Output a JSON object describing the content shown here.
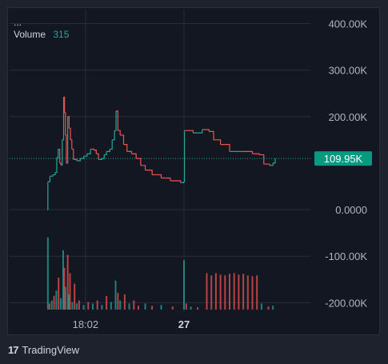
{
  "legend": {
    "title": "...",
    "volume_label": "Volume",
    "volume_value": "315"
  },
  "brand": {
    "name": "TradingView"
  },
  "colors": {
    "up": "#26a69a",
    "down": "#ef5350",
    "background": "#131722",
    "grid": "#2a2e39",
    "last_price_bg": "#089981"
  },
  "chart_data": {
    "type": "line",
    "y_ticks": [
      "400.00K",
      "300.00K",
      "200.00K",
      "0.0000",
      "-100.00K",
      "-200.00K"
    ],
    "y_tick_values": [
      400000,
      300000,
      200000,
      0,
      -100000,
      -200000
    ],
    "ylim": [
      -220000,
      430000
    ],
    "x_ticks": [
      {
        "label": "18:02",
        "bold": false,
        "t": 0.168
      },
      {
        "label": "27",
        "bold": true,
        "t": 0.6
      }
    ],
    "last_price": {
      "label": "109.95K",
      "value": 109950
    },
    "price_series": [
      [
        0.0,
        0
      ],
      [
        0.003,
        60000
      ],
      [
        0.012,
        72000
      ],
      [
        0.025,
        75000
      ],
      [
        0.035,
        80000
      ],
      [
        0.042,
        112000
      ],
      [
        0.048,
        130000
      ],
      [
        0.055,
        100000
      ],
      [
        0.06,
        96000
      ],
      [
        0.066,
        150000
      ],
      [
        0.072,
        242000
      ],
      [
        0.076,
        208000
      ],
      [
        0.08,
        160000
      ],
      [
        0.084,
        100000
      ],
      [
        0.09,
        200000
      ],
      [
        0.096,
        175000
      ],
      [
        0.102,
        150000
      ],
      [
        0.108,
        130000
      ],
      [
        0.115,
        108000
      ],
      [
        0.13,
        105000
      ],
      [
        0.145,
        110000
      ],
      [
        0.16,
        115000
      ],
      [
        0.175,
        120000
      ],
      [
        0.19,
        130000
      ],
      [
        0.205,
        128000
      ],
      [
        0.215,
        120000
      ],
      [
        0.225,
        108000
      ],
      [
        0.24,
        110000
      ],
      [
        0.25,
        118000
      ],
      [
        0.26,
        125000
      ],
      [
        0.275,
        130000
      ],
      [
        0.285,
        150000
      ],
      [
        0.295,
        170000
      ],
      [
        0.302,
        212000
      ],
      [
        0.31,
        170000
      ],
      [
        0.32,
        160000
      ],
      [
        0.335,
        140000
      ],
      [
        0.35,
        125000
      ],
      [
        0.37,
        120000
      ],
      [
        0.39,
        110000
      ],
      [
        0.41,
        95000
      ],
      [
        0.43,
        85000
      ],
      [
        0.46,
        75000
      ],
      [
        0.5,
        68000
      ],
      [
        0.54,
        62000
      ],
      [
        0.585,
        58000
      ],
      [
        0.598,
        60000
      ],
      [
        0.602,
        170000
      ],
      [
        0.64,
        165000
      ],
      [
        0.68,
        172000
      ],
      [
        0.71,
        168000
      ],
      [
        0.73,
        150000
      ],
      [
        0.76,
        140000
      ],
      [
        0.8,
        125000
      ],
      [
        0.85,
        125000
      ],
      [
        0.9,
        120000
      ],
      [
        0.93,
        118000
      ],
      [
        0.95,
        98000
      ],
      [
        0.975,
        95000
      ],
      [
        0.99,
        100000
      ],
      [
        1.0,
        109950
      ]
    ],
    "volume_bars_note": "",
    "volume_series": [
      [
        0.003,
        0.95,
        "up"
      ],
      [
        0.01,
        0.08,
        "down"
      ],
      [
        0.02,
        0.12,
        "up"
      ],
      [
        0.03,
        0.18,
        "down"
      ],
      [
        0.04,
        0.25,
        "up"
      ],
      [
        0.05,
        0.42,
        "down"
      ],
      [
        0.06,
        0.15,
        "up"
      ],
      [
        0.07,
        0.78,
        "up"
      ],
      [
        0.075,
        0.55,
        "down"
      ],
      [
        0.08,
        0.3,
        "up"
      ],
      [
        0.09,
        0.72,
        "down"
      ],
      [
        0.095,
        0.2,
        "up"
      ],
      [
        0.1,
        0.48,
        "down"
      ],
      [
        0.11,
        0.1,
        "up"
      ],
      [
        0.12,
        0.34,
        "down"
      ],
      [
        0.13,
        0.08,
        "up"
      ],
      [
        0.14,
        0.12,
        "down"
      ],
      [
        0.16,
        0.06,
        "up"
      ],
      [
        0.18,
        0.1,
        "down"
      ],
      [
        0.2,
        0.08,
        "up"
      ],
      [
        0.22,
        0.12,
        "down"
      ],
      [
        0.24,
        0.06,
        "up"
      ],
      [
        0.26,
        0.18,
        "down"
      ],
      [
        0.28,
        0.1,
        "up"
      ],
      [
        0.3,
        0.38,
        "up"
      ],
      [
        0.31,
        0.22,
        "down"
      ],
      [
        0.32,
        0.12,
        "up"
      ],
      [
        0.34,
        0.2,
        "down"
      ],
      [
        0.36,
        0.08,
        "up"
      ],
      [
        0.38,
        0.12,
        "down"
      ],
      [
        0.4,
        0.05,
        "down"
      ],
      [
        0.43,
        0.08,
        "up"
      ],
      [
        0.46,
        0.05,
        "down"
      ],
      [
        0.5,
        0.06,
        "up"
      ],
      [
        0.55,
        0.04,
        "down"
      ],
      [
        0.6,
        0.65,
        "up"
      ],
      [
        0.61,
        0.08,
        "down"
      ],
      [
        0.63,
        0.04,
        "up"
      ],
      [
        0.66,
        0.03,
        "down"
      ],
      [
        0.7,
        0.48,
        "down"
      ],
      [
        0.72,
        0.45,
        "down"
      ],
      [
        0.74,
        0.48,
        "down"
      ],
      [
        0.76,
        0.46,
        "down"
      ],
      [
        0.78,
        0.45,
        "down"
      ],
      [
        0.8,
        0.47,
        "down"
      ],
      [
        0.82,
        0.48,
        "down"
      ],
      [
        0.84,
        0.46,
        "down"
      ],
      [
        0.86,
        0.47,
        "down"
      ],
      [
        0.88,
        0.45,
        "down"
      ],
      [
        0.9,
        0.44,
        "down"
      ],
      [
        0.92,
        0.45,
        "down"
      ],
      [
        0.94,
        0.08,
        "up"
      ],
      [
        0.97,
        0.04,
        "down"
      ],
      [
        0.99,
        0.05,
        "up"
      ]
    ]
  }
}
